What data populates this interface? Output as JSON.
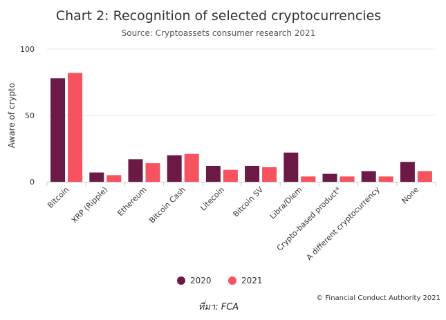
{
  "chart_data": {
    "type": "bar",
    "title": "Chart 2: Recognition of selected cryptocurrencies",
    "subtitle": "Source: Cryptoassets consumer research 2021",
    "ylabel": "Aware of crypto",
    "xlabel": "",
    "ylim": [
      0,
      100
    ],
    "yticks": [
      0,
      50,
      100
    ],
    "categories": [
      "Bitcoin",
      "XRP (Ripple)",
      "Ethereum",
      "Bitcoin Cash",
      "Litecoin",
      "Bitcoin SV",
      "Libra/Diem",
      "Crypto-based product*",
      "A different cryptocurrency",
      "None"
    ],
    "series": [
      {
        "name": "2020",
        "color": "#6b1a45",
        "values": [
          78,
          7,
          17,
          20,
          12,
          12,
          22,
          6,
          8,
          15
        ]
      },
      {
        "name": "2021",
        "color": "#f7525f",
        "values": [
          82,
          5,
          14,
          21,
          9,
          11,
          4,
          4,
          4,
          8
        ]
      }
    ],
    "grid": true,
    "legend_position": "bottom-center"
  },
  "credit": "© Financial Conduct Authority 2021",
  "source_line": "ที่มา: FCA"
}
